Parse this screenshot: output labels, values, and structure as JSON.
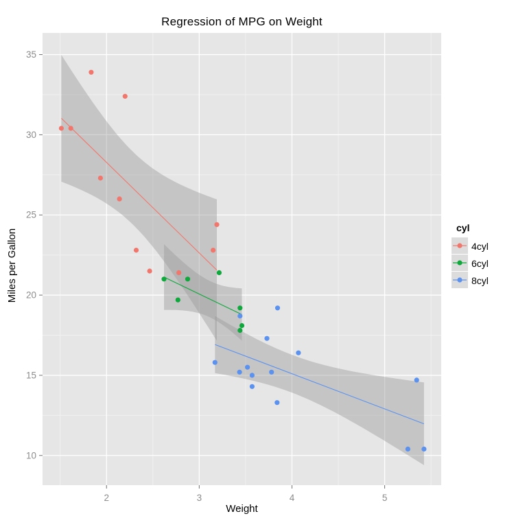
{
  "title": "Regression of MPG on Weight",
  "axes": {
    "x_label": "Weight",
    "y_label": "Miles per Gallon",
    "x_tick_labels": [
      "2",
      "3",
      "4",
      "5"
    ],
    "y_tick_labels": [
      "10",
      "15",
      "20",
      "25",
      "30",
      "35"
    ]
  },
  "legend": {
    "title": "cyl",
    "items": [
      {
        "label": "4cyl",
        "color": "#F2766C"
      },
      {
        "label": "6cyl",
        "color": "#0FA83C"
      },
      {
        "label": "8cyl",
        "color": "#5B92F0"
      }
    ]
  },
  "colors": {
    "panel_bg": "#E6E6E6",
    "grid_major": "#FFFFFF",
    "grid_minor": "#F2F2F2",
    "band_fill": "#999999",
    "band_opacity": "0.42",
    "tick_mark": "#6E6E6E",
    "tick_label": "#8C8C8C",
    "legend_key_bg": "#DCDCDC",
    "text": "#000000"
  },
  "chart_data": {
    "type": "scatter",
    "title": "Regression of MPG on Weight",
    "xlabel": "Weight",
    "ylabel": "Miles per Gallon",
    "legend_title": "cyl",
    "smooth": "lm",
    "ci_level": 0.95,
    "grid": true,
    "legend_position": "right",
    "xlim": [
      1.31,
      5.61
    ],
    "ylim": [
      8.15,
      36.35
    ],
    "x_ticks": [
      2,
      3,
      4,
      5
    ],
    "y_ticks": [
      10,
      15,
      20,
      25,
      30,
      35
    ],
    "series": [
      {
        "name": "4cyl",
        "color": "#F2766C",
        "points": [
          [
            2.32,
            22.8
          ],
          [
            3.19,
            24.4
          ],
          [
            3.15,
            22.8
          ],
          [
            2.2,
            32.4
          ],
          [
            1.615,
            30.4
          ],
          [
            1.835,
            33.9
          ],
          [
            2.465,
            21.5
          ],
          [
            1.935,
            27.3
          ],
          [
            2.14,
            26.0
          ],
          [
            1.513,
            30.4
          ],
          [
            2.78,
            21.4
          ]
        ]
      },
      {
        "name": "6cyl",
        "color": "#0FA83C",
        "points": [
          [
            2.62,
            21.0
          ],
          [
            2.875,
            21.0
          ],
          [
            3.215,
            21.4
          ],
          [
            3.46,
            18.1
          ],
          [
            3.44,
            19.2
          ],
          [
            3.44,
            17.8
          ],
          [
            2.77,
            19.7
          ]
        ]
      },
      {
        "name": "8cyl",
        "color": "#5B92F0",
        "points": [
          [
            3.44,
            18.7
          ],
          [
            3.57,
            14.3
          ],
          [
            4.07,
            16.4
          ],
          [
            3.73,
            17.3
          ],
          [
            3.78,
            15.2
          ],
          [
            5.25,
            10.4
          ],
          [
            5.424,
            10.4
          ],
          [
            5.345,
            14.7
          ],
          [
            3.52,
            15.5
          ],
          [
            3.435,
            15.2
          ],
          [
            3.84,
            13.3
          ],
          [
            3.845,
            19.2
          ],
          [
            3.17,
            15.8
          ],
          [
            3.57,
            15.0
          ]
        ]
      }
    ]
  }
}
